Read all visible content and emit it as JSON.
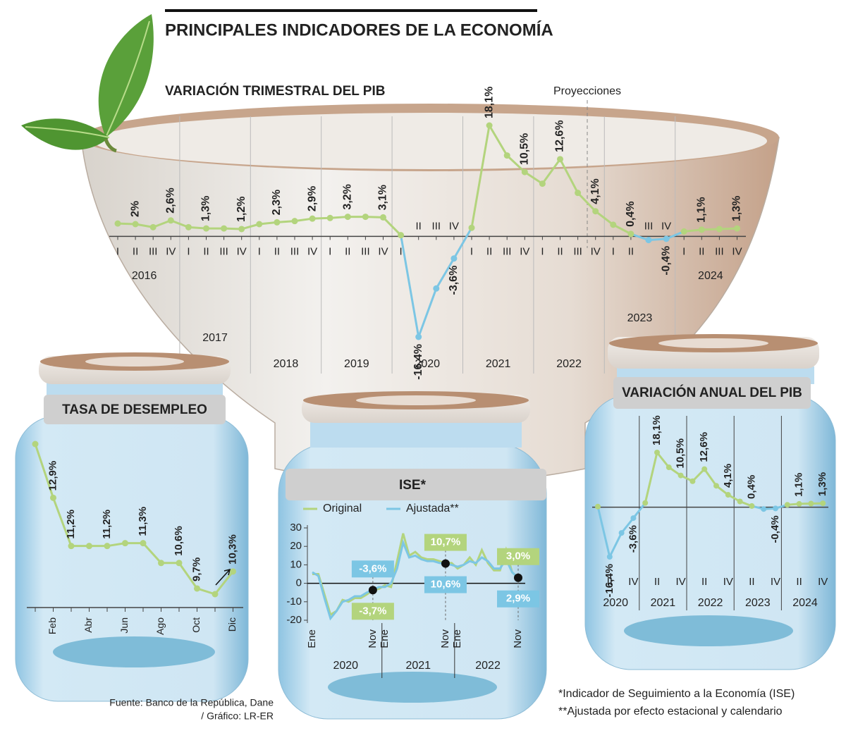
{
  "title": "PRINCIPALES INDICADORES DE LA ECONOMÍA",
  "source": "Fuente: Banco de la República, Dane",
  "credit": "/ Gráfico: LR-ER",
  "notes": [
    "*Indicador de Seguimiento a la Economía (ISE)",
    "**Ajustada por efecto estacional y calendario"
  ],
  "chart_data": [
    {
      "type": "line",
      "title": "VARIACIÓN TRIMESTRAL DEL PIB",
      "annotation": "Proyecciones",
      "categories": [
        "I",
        "II",
        "III",
        "IV",
        "I",
        "II",
        "III",
        "IV",
        "I",
        "II",
        "III",
        "IV",
        "I",
        "II",
        "III",
        "IV",
        "I",
        "II",
        "III",
        "IV",
        "I",
        "II",
        "III",
        "IV",
        "I",
        "II",
        "III",
        "IV",
        "I",
        "II",
        "III",
        "IV",
        "I",
        "II",
        "III",
        "IV"
      ],
      "years": [
        "2016",
        "2017",
        "2018",
        "2019",
        "2020",
        "2021",
        "2022",
        "2023",
        "2024"
      ],
      "series": [
        {
          "color": "#b3d47d",
          "negative_color": "#7cc6e4",
          "values": [
            2.1,
            2.0,
            1.5,
            2.6,
            1.5,
            1.3,
            1.3,
            1.2,
            2.0,
            2.3,
            2.5,
            2.9,
            3.0,
            3.2,
            3.2,
            3.1,
            0.2,
            -16.4,
            -8.5,
            -3.6,
            1.4,
            18.1,
            13.2,
            10.5,
            8.6,
            12.6,
            7.1,
            4.1,
            1.9,
            0.4,
            -0.6,
            -0.4,
            0.8,
            1.1,
            1.2,
            1.3
          ],
          "value_labels": [
            null,
            "2%",
            null,
            "2,6%",
            null,
            "1,3%",
            null,
            "1,2%",
            null,
            "2,3%",
            null,
            "2,9%",
            null,
            "3,2%",
            null,
            "3,1%",
            null,
            "-16,4%",
            null,
            "-3,6%",
            null,
            "18,1%",
            null,
            "10,5%",
            null,
            "12,6%",
            null,
            "4,1%",
            null,
            "0,4%",
            null,
            "-0,4%",
            null,
            "1,1%",
            null,
            "1,3%"
          ]
        }
      ]
    },
    {
      "type": "line",
      "title": "TASA DE DESEMPLEO",
      "categories": [
        null,
        "Feb",
        null,
        "Abr",
        null,
        "Jun",
        null,
        "Ago",
        null,
        "Oct",
        null,
        "Dic"
      ],
      "series": [
        {
          "color": "#b3d47d",
          "values": [
            14.8,
            12.9,
            11.2,
            11.2,
            11.2,
            11.3,
            11.3,
            10.6,
            10.6,
            9.7,
            9.5,
            10.3
          ],
          "value_labels": [
            null,
            "12,9%",
            "11,2%",
            null,
            "11,2%",
            null,
            "11,3%",
            null,
            "10,6%",
            "9,7%",
            null,
            "10,3%"
          ]
        }
      ]
    },
    {
      "type": "line",
      "title": "ISE*",
      "categories": [
        "Ene",
        null,
        null,
        null,
        null,
        null,
        null,
        null,
        null,
        null,
        "Nov",
        null,
        "Ene",
        null,
        null,
        null,
        null,
        null,
        null,
        null,
        null,
        null,
        "Nov",
        null,
        "Ene",
        null,
        null,
        null,
        null,
        null,
        null,
        null,
        null,
        null,
        "Nov"
      ],
      "years": [
        "2020",
        "2021",
        "2022"
      ],
      "ylim": [
        -20,
        30
      ],
      "yticks": [
        -20,
        -10,
        0,
        10,
        20,
        30
      ],
      "series": [
        {
          "name": "Original",
          "color": "#b3d47d",
          "values": [
            5,
            5,
            -6,
            -17,
            -15,
            -9,
            -10,
            -8,
            -8,
            -6,
            -3.7,
            -3,
            -1,
            -2,
            12,
            27,
            15,
            17,
            14,
            13,
            13,
            12,
            10.7,
            11,
            8,
            10,
            14,
            10,
            18,
            11,
            7,
            7,
            18,
            6,
            3.0
          ],
          "value_labels": [
            null,
            null,
            null,
            null,
            null,
            null,
            null,
            null,
            null,
            null,
            "-3,7%",
            null,
            null,
            null,
            null,
            null,
            null,
            null,
            null,
            null,
            null,
            null,
            "10,7%",
            null,
            null,
            null,
            null,
            null,
            null,
            null,
            null,
            null,
            null,
            null,
            "3,0%"
          ]
        },
        {
          "name": "Ajustada**",
          "color": "#7cc6e4",
          "values": [
            6,
            4,
            -8,
            -19,
            -15,
            -10,
            -9,
            -7,
            -7,
            -5,
            -3.6,
            -2,
            -2,
            0,
            8,
            22,
            14,
            15,
            13,
            12,
            12,
            11,
            10.6,
            10,
            9,
            10,
            12,
            11,
            14,
            12,
            8,
            8,
            13,
            6,
            2.9
          ],
          "value_labels": [
            null,
            null,
            null,
            null,
            null,
            null,
            null,
            null,
            null,
            null,
            "-3,6%",
            null,
            null,
            null,
            null,
            null,
            null,
            null,
            null,
            null,
            null,
            null,
            "10,6%",
            null,
            null,
            null,
            null,
            null,
            null,
            null,
            null,
            null,
            null,
            null,
            "2,9%"
          ]
        }
      ]
    },
    {
      "type": "line",
      "title": "VARIACIÓN ANUAL DEL PIB",
      "categories": [
        null,
        "II",
        null,
        "IV",
        null,
        "II",
        null,
        "IV",
        null,
        "II",
        null,
        "IV",
        null,
        "II",
        null,
        "IV",
        null,
        "II",
        null,
        "IV"
      ],
      "years": [
        "2020",
        "2021",
        "2022",
        "2023",
        "2024"
      ],
      "series": [
        {
          "color": "#b3d47d",
          "negative_color": "#7cc6e4",
          "values": [
            0.2,
            -16.4,
            -8.5,
            -3.6,
            1.4,
            18.1,
            13.2,
            10.5,
            8.6,
            12.6,
            7.1,
            4.1,
            1.9,
            0.4,
            -0.6,
            -0.4,
            0.8,
            1.1,
            1.2,
            1.3
          ],
          "value_labels": [
            null,
            "-16,4%",
            null,
            "-3,6%",
            null,
            "18,1%",
            null,
            "10,5%",
            null,
            "12,6%",
            null,
            "4,1%",
            null,
            "0,4%",
            null,
            "-0,4%",
            null,
            "1,1%",
            null,
            "1,3%"
          ]
        }
      ]
    }
  ]
}
